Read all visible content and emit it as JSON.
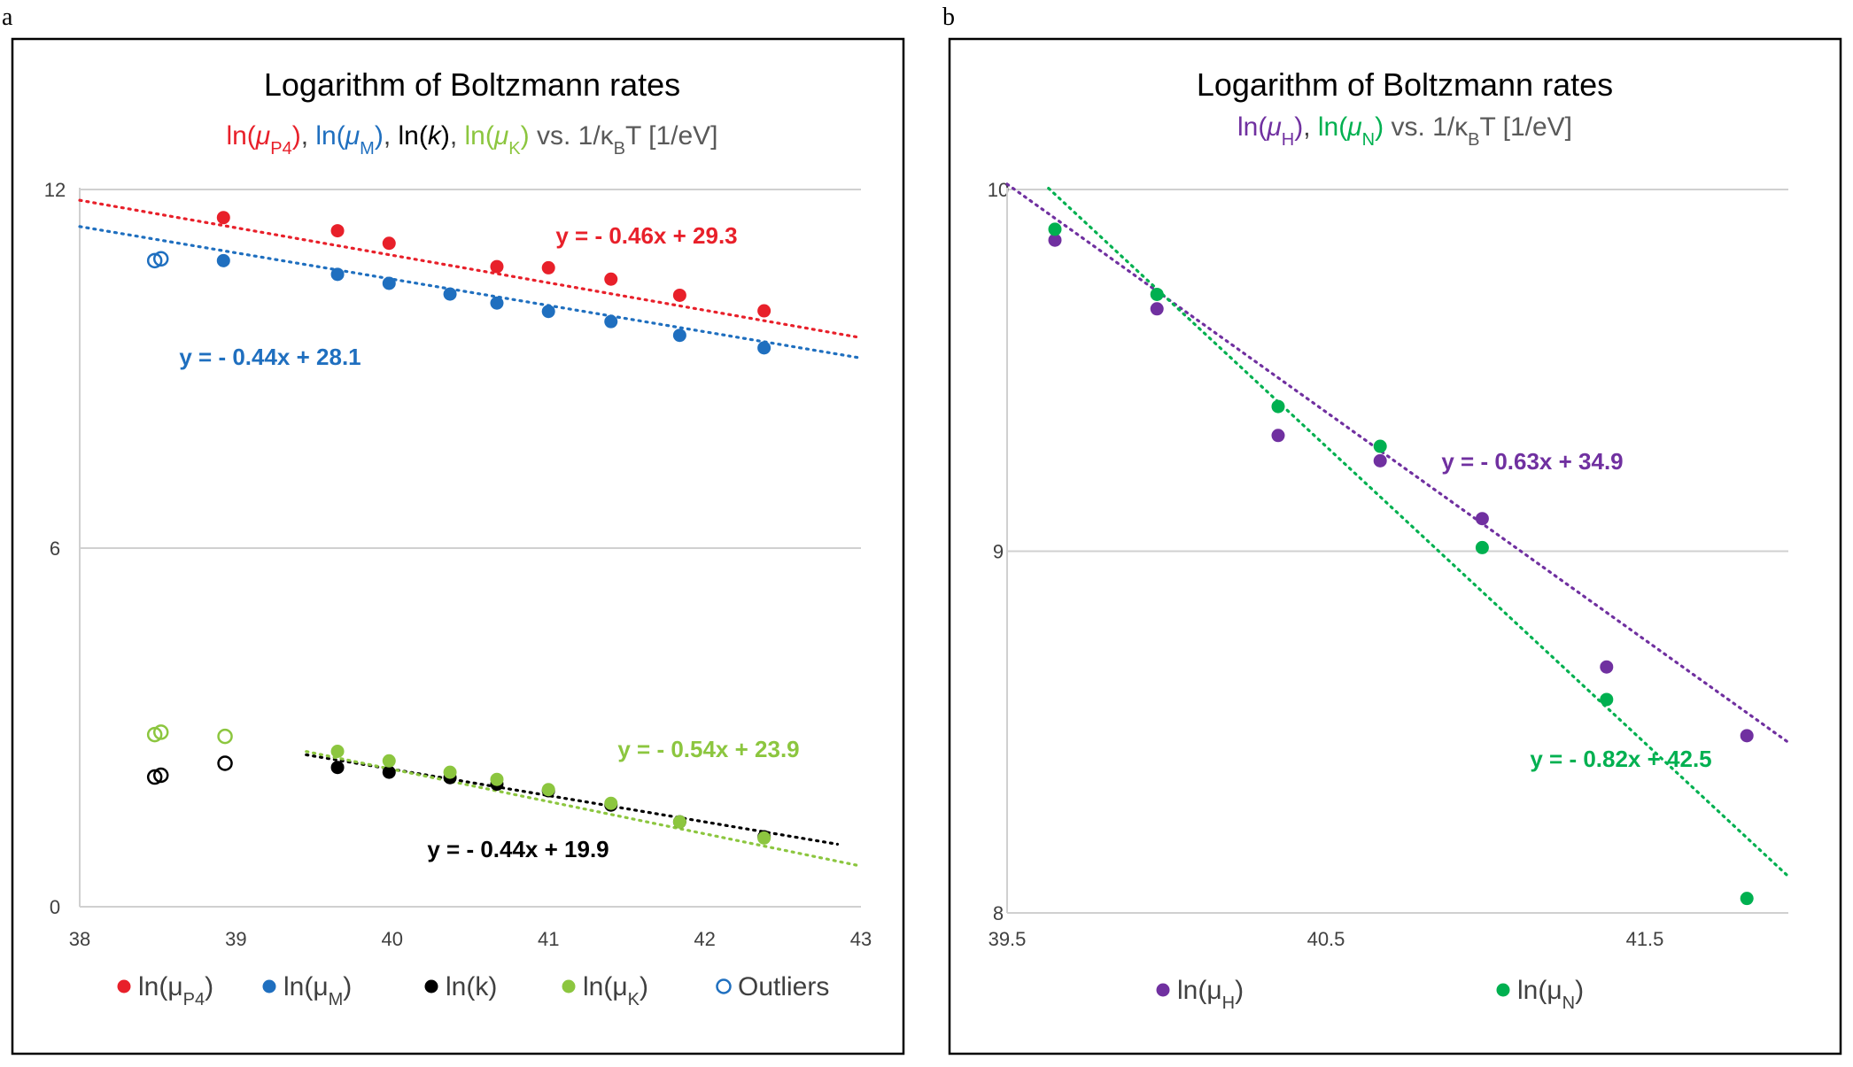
{
  "chart_data": [
    {
      "panel": "a",
      "type": "scatter",
      "title": "Logarithm of Boltzmann rates",
      "subtitle_parts": [
        {
          "text": "ln(",
          "color": "#e8202a"
        },
        {
          "text": "μ",
          "color": "#e8202a",
          "italic": true
        },
        {
          "text": "P4",
          "color": "#e8202a",
          "sub": true
        },
        {
          "text": ")",
          "color": "#e8202a"
        },
        {
          "text": ", ",
          "color": "#404040"
        },
        {
          "text": "ln(",
          "color": "#1f6fbf"
        },
        {
          "text": "μ",
          "color": "#1f6fbf",
          "italic": true
        },
        {
          "text": "M",
          "color": "#1f6fbf",
          "sub": true
        },
        {
          "text": ")",
          "color": "#1f6fbf"
        },
        {
          "text": ", ",
          "color": "#404040"
        },
        {
          "text": "ln(",
          "color": "#000000"
        },
        {
          "text": "k",
          "color": "#000000",
          "italic": true
        },
        {
          "text": ")",
          "color": "#000000"
        },
        {
          "text": ", ",
          "color": "#404040"
        },
        {
          "text": "ln(",
          "color": "#8cc63f"
        },
        {
          "text": "μ",
          "color": "#8cc63f",
          "italic": true
        },
        {
          "text": "K",
          "color": "#8cc63f",
          "sub": true
        },
        {
          "text": ")",
          "color": "#8cc63f"
        },
        {
          "text": "  vs. 1/κ",
          "color": "#595959"
        },
        {
          "text": "B",
          "color": "#595959",
          "sub": true
        },
        {
          "text": "T [1/eV]",
          "color": "#595959"
        }
      ],
      "xlim": [
        38,
        43
      ],
      "ylim": [
        0,
        12
      ],
      "xticks": [
        "38",
        "39",
        "40",
        "41",
        "42",
        "43"
      ],
      "yticks": [
        "0",
        "6",
        "12"
      ],
      "grid": true,
      "series": [
        {
          "name": "ln(μP4)",
          "color": "#e8202a",
          "marker": "filled",
          "x": [
            38.92,
            39.65,
            39.98,
            40.67,
            41.0,
            41.4,
            41.84,
            42.38
          ],
          "y": [
            11.53,
            11.31,
            11.1,
            10.71,
            10.69,
            10.5,
            10.23,
            9.97
          ],
          "trend": {
            "label": "y = - 0.46x + 29.3",
            "slope": -0.46,
            "intercept": 29.3,
            "x_range": [
              38,
              43
            ]
          }
        },
        {
          "name": "ln(μM)",
          "color": "#1f6fbf",
          "marker": "filled",
          "x": [
            38.92,
            39.65,
            39.98,
            40.37,
            40.67,
            41.0,
            41.4,
            41.84,
            42.38
          ],
          "y": [
            10.81,
            10.58,
            10.43,
            10.25,
            10.1,
            9.96,
            9.79,
            9.56,
            9.35
          ],
          "trend": {
            "label": "y = - 0.44x + 28.1",
            "slope": -0.44,
            "intercept": 28.1,
            "x_range": [
              38,
              43
            ]
          }
        },
        {
          "name": "ln(k)",
          "color": "#000000",
          "marker": "filled",
          "x": [
            39.65,
            39.98,
            40.37,
            40.67,
            41.0,
            41.4,
            41.84,
            42.38
          ],
          "y": [
            2.33,
            2.25,
            2.16,
            2.05,
            1.94,
            1.7,
            1.42,
            1.17
          ],
          "trend": {
            "label": "y = - 0.44x + 19.9",
            "slope": -0.44,
            "intercept": 19.9,
            "x_range": [
              39.45,
              42.85
            ]
          }
        },
        {
          "name": "ln(μK)",
          "color": "#8cc63f",
          "marker": "filled",
          "x": [
            39.65,
            39.98,
            40.37,
            40.67,
            41.0,
            41.4,
            41.84,
            42.38
          ],
          "y": [
            2.6,
            2.44,
            2.25,
            2.13,
            1.96,
            1.73,
            1.42,
            1.15
          ],
          "trend": {
            "label": "y = - 0.54x + 23.9",
            "slope": -0.54,
            "intercept": 23.9,
            "x_range": [
              39.45,
              43
            ]
          }
        },
        {
          "name": "Outliers",
          "color": "#1f6fbf",
          "marker": "open",
          "x": [
            38.48,
            38.52
          ],
          "y": [
            10.81,
            10.84
          ]
        }
      ],
      "outliers_other": [
        {
          "color": "#8cc63f",
          "x": [
            38.48,
            38.52,
            38.93
          ],
          "y": [
            2.88,
            2.92,
            2.85
          ]
        },
        {
          "color": "#000000",
          "x": [
            38.48,
            38.52,
            38.93
          ],
          "y": [
            2.17,
            2.2,
            2.4
          ]
        }
      ],
      "legend": [
        {
          "label": "ln(μ",
          "sub": "P4",
          "tail": ")",
          "color": "#e8202a",
          "open": false
        },
        {
          "label": "ln(μ",
          "sub": "M",
          "tail": ")",
          "color": "#1f6fbf",
          "open": false
        },
        {
          "label": "ln(k)",
          "sub": "",
          "tail": "",
          "color": "#000000",
          "open": false
        },
        {
          "label": "ln(μ",
          "sub": "K",
          "tail": ")",
          "color": "#8cc63f",
          "open": false
        },
        {
          "label": "Outliers",
          "sub": "",
          "tail": "",
          "color": "#1f6fbf",
          "open": true
        }
      ],
      "legend_position": "bottom"
    },
    {
      "panel": "b",
      "type": "scatter",
      "title": "Logarithm of Boltzmann rates",
      "subtitle_parts": [
        {
          "text": "ln(",
          "color": "#7030a0"
        },
        {
          "text": "μ",
          "color": "#7030a0",
          "italic": true
        },
        {
          "text": "H",
          "color": "#7030a0",
          "sub": true
        },
        {
          "text": ")",
          "color": "#7030a0"
        },
        {
          "text": ", ",
          "color": "#404040"
        },
        {
          "text": "ln(",
          "color": "#00b050"
        },
        {
          "text": "μ",
          "color": "#00b050",
          "italic": true
        },
        {
          "text": "N",
          "color": "#00b050",
          "sub": true
        },
        {
          "text": ")",
          "color": "#00b050"
        },
        {
          "text": "  vs. 1/κ",
          "color": "#595959"
        },
        {
          "text": "B",
          "color": "#595959",
          "sub": true
        },
        {
          "text": "T [1/eV]",
          "color": "#595959"
        }
      ],
      "xlim": [
        39.5,
        41.95
      ],
      "ylim": [
        8,
        10
      ],
      "xticks": [
        "39.5",
        "40.5",
        "41.5"
      ],
      "xtick_values": [
        39.5,
        40.5,
        41.5
      ],
      "yticks": [
        "8",
        "9",
        "10"
      ],
      "grid": true,
      "series": [
        {
          "name": "ln(μH)",
          "color": "#7030a0",
          "marker": "filled",
          "x": [
            39.65,
            39.97,
            40.35,
            40.67,
            40.99,
            41.38,
            41.82
          ],
          "y": [
            9.86,
            9.67,
            9.32,
            9.25,
            9.09,
            8.68,
            8.49
          ],
          "trend": {
            "label": "y = - 0.63x + 34.9",
            "slope": -0.63,
            "intercept": 34.9,
            "x_range": [
              39.5,
              41.95
            ]
          }
        },
        {
          "name": "ln(μN)",
          "color": "#00b050",
          "marker": "filled",
          "x": [
            39.65,
            39.97,
            40.35,
            40.67,
            40.99,
            41.38,
            41.82
          ],
          "y": [
            9.89,
            9.71,
            9.4,
            9.29,
            9.01,
            8.59,
            8.04
          ],
          "trend": {
            "label": "y = - 0.82x + 42.5",
            "slope": -0.82,
            "intercept": 42.5,
            "x_range": [
              39.63,
              41.95
            ]
          }
        }
      ],
      "legend": [
        {
          "label": "ln(μ",
          "sub": "H",
          "tail": ")",
          "color": "#7030a0",
          "open": false
        },
        {
          "label": "ln(μ",
          "sub": "N",
          "tail": ")",
          "color": "#00b050",
          "open": false
        }
      ],
      "legend_position": "bottom"
    }
  ]
}
